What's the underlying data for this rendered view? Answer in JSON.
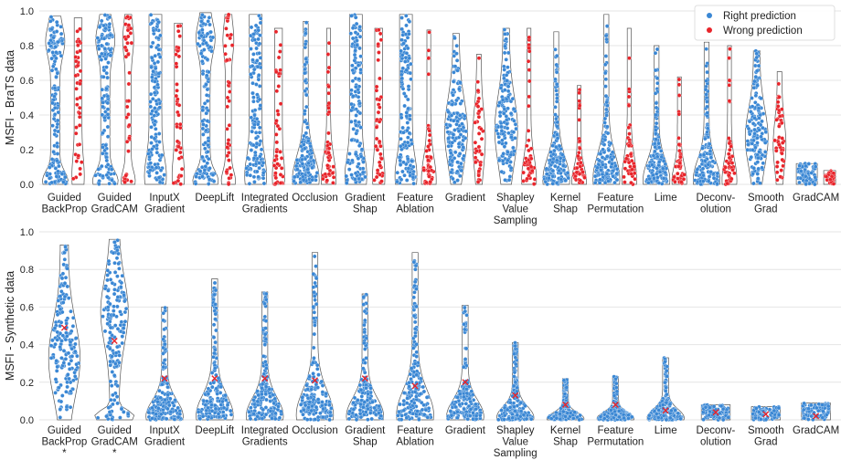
{
  "chart_data": [
    {
      "type": "swarm-violin",
      "ylabel": "MSFI - BraTS data",
      "ylim": [
        0.0,
        1.0
      ],
      "yticks": [
        "0.0",
        "0.2",
        "0.4",
        "0.6",
        "0.8",
        "1.0"
      ],
      "grid": true,
      "legend_position": "top-right",
      "legend": {
        "right": "Right prediction",
        "wrong": "Wrong prediction",
        "right_color": "#3a87d4",
        "wrong_color": "#e8242a"
      },
      "categories": [
        [
          "Guided",
          "BackProp"
        ],
        [
          "Guided",
          "GradCAM"
        ],
        [
          "InputX",
          "Gradient"
        ],
        [
          "DeepLift"
        ],
        [
          "Integrated",
          "Gradients"
        ],
        [
          "Occlusion"
        ],
        [
          "Gradient",
          "Shap"
        ],
        [
          "Feature",
          "Ablation"
        ],
        [
          "Gradient"
        ],
        [
          "Shapley",
          "Value",
          "Sampling"
        ],
        [
          "Kernel",
          "Shap"
        ],
        [
          "Feature",
          "Permutation"
        ],
        [
          "Lime"
        ],
        [
          "Deconv-",
          "olution"
        ],
        [
          "Smooth",
          "Grad"
        ],
        [
          "GradCAM"
        ]
      ],
      "series": [
        {
          "name": "Right prediction",
          "min": [
            0.0,
            0.0,
            0.0,
            0.0,
            0.0,
            0.0,
            0.0,
            0.0,
            0.0,
            0.0,
            0.0,
            0.0,
            0.0,
            0.0,
            0.0,
            0.0
          ],
          "max": [
            0.97,
            0.98,
            0.98,
            0.99,
            0.98,
            0.94,
            0.98,
            0.98,
            0.87,
            0.9,
            0.88,
            0.98,
            0.8,
            0.82,
            0.77,
            0.12
          ],
          "shape": [
            "bimodal",
            "bimodal",
            "uniform",
            "bimodal",
            "uniform",
            "low",
            "uniform",
            "uniform",
            "mid",
            "mid",
            "low",
            "low",
            "low",
            "low",
            "mid",
            "flat"
          ]
        },
        {
          "name": "Wrong prediction",
          "min": [
            0.0,
            0.0,
            0.0,
            0.0,
            0.0,
            0.0,
            0.0,
            0.0,
            0.0,
            0.0,
            0.0,
            0.0,
            0.0,
            0.0,
            0.0,
            0.0
          ],
          "max": [
            0.96,
            0.98,
            0.93,
            0.98,
            0.9,
            0.9,
            0.9,
            0.89,
            0.75,
            0.9,
            0.57,
            0.9,
            0.62,
            0.8,
            0.65,
            0.08
          ],
          "shape": [
            "uniform",
            "bimodal",
            "uniform",
            "bimodal",
            "uniform",
            "low",
            "uniform",
            "low",
            "mid",
            "low",
            "low",
            "low",
            "low",
            "low",
            "mid",
            "flat"
          ]
        }
      ]
    },
    {
      "type": "swarm-violin",
      "ylabel": "MSFI - Synthetic data",
      "ylim": [
        0.0,
        1.0
      ],
      "yticks": [
        "0.0",
        "0.2",
        "0.4",
        "0.6",
        "0.8",
        "1.0"
      ],
      "grid": true,
      "marker_color": "#3a87d4",
      "mean_marker_color": "#e8242a",
      "categories": [
        [
          "Guided",
          "BackProp",
          "*"
        ],
        [
          "Guided",
          "GradCAM",
          "*"
        ],
        [
          "InputX",
          "Gradient"
        ],
        [
          "DeepLift"
        ],
        [
          "Integrated",
          "Gradients"
        ],
        [
          "Occlusion"
        ],
        [
          "Gradient",
          "Shap"
        ],
        [
          "Feature",
          "Ablation"
        ],
        [
          "Gradient"
        ],
        [
          "Shapley",
          "Value",
          "Sampling"
        ],
        [
          "Kernel",
          "Shap"
        ],
        [
          "Feature",
          "Permutation"
        ],
        [
          "Lime"
        ],
        [
          "Deconv-",
          "olution"
        ],
        [
          "Smooth",
          "Grad"
        ],
        [
          "GradCAM"
        ]
      ],
      "max": [
        0.93,
        0.96,
        0.6,
        0.75,
        0.68,
        0.89,
        0.67,
        0.89,
        0.61,
        0.41,
        0.22,
        0.23,
        0.33,
        0.08,
        0.07,
        0.09
      ],
      "mean": [
        0.49,
        0.42,
        0.22,
        0.22,
        0.22,
        0.21,
        0.22,
        0.18,
        0.2,
        0.13,
        0.08,
        0.08,
        0.05,
        0.04,
        0.03,
        0.02
      ],
      "shape": [
        "mid",
        "split",
        "low",
        "low",
        "low",
        "low",
        "low",
        "low",
        "low",
        "low",
        "low",
        "low",
        "low",
        "flat",
        "flat",
        "flat"
      ]
    }
  ]
}
